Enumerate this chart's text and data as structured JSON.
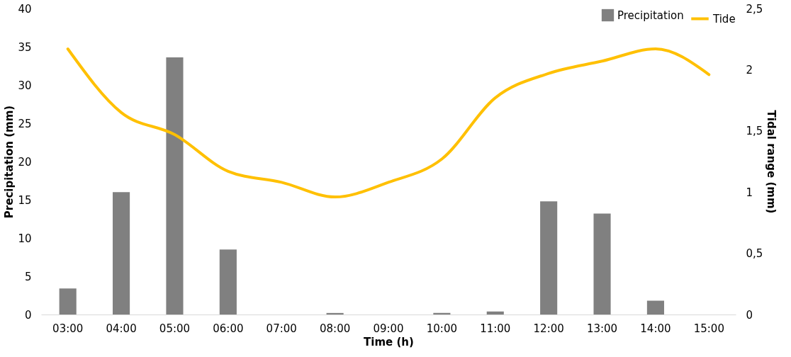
{
  "chart_data": {
    "type": "bar",
    "xlabel": "Time (h)",
    "ylabel": "Precipitation (mm)",
    "y2label": "Tidal range (mm)",
    "categories": [
      "03:00",
      "04:00",
      "05:00",
      "06:00",
      "07:00",
      "08:00",
      "09:00",
      "10:00",
      "11:00",
      "12:00",
      "13:00",
      "14:00",
      "15:00"
    ],
    "series": [
      {
        "name": "Precipitation",
        "color": "#808080",
        "values": [
          3.4,
          16,
          33.6,
          8.5,
          0,
          0.2,
          0,
          0.2,
          0.4,
          14.8,
          13.2,
          1.8,
          0
        ]
      },
      {
        "name": "Tide",
        "type": "line",
        "axis": "y2",
        "color": "#ffc000",
        "values": [
          2.17,
          1.65,
          1.47,
          1.17,
          1.08,
          0.96,
          1.08,
          1.27,
          1.77,
          1.97,
          2.07,
          2.17,
          1.96
        ]
      }
    ],
    "ylim": [
      0,
      40
    ],
    "yticks": [
      0,
      5,
      10,
      15,
      20,
      25,
      30,
      35,
      40
    ],
    "y2lim": [
      0,
      2.5
    ],
    "y2ticks": [
      0,
      {
        "value": 0.5,
        "label": "0,5"
      },
      1,
      {
        "value": 1.5,
        "label": "1,5"
      },
      2,
      {
        "value": 2.5,
        "label": "2,5"
      }
    ],
    "grid": false,
    "legend": "top right"
  }
}
